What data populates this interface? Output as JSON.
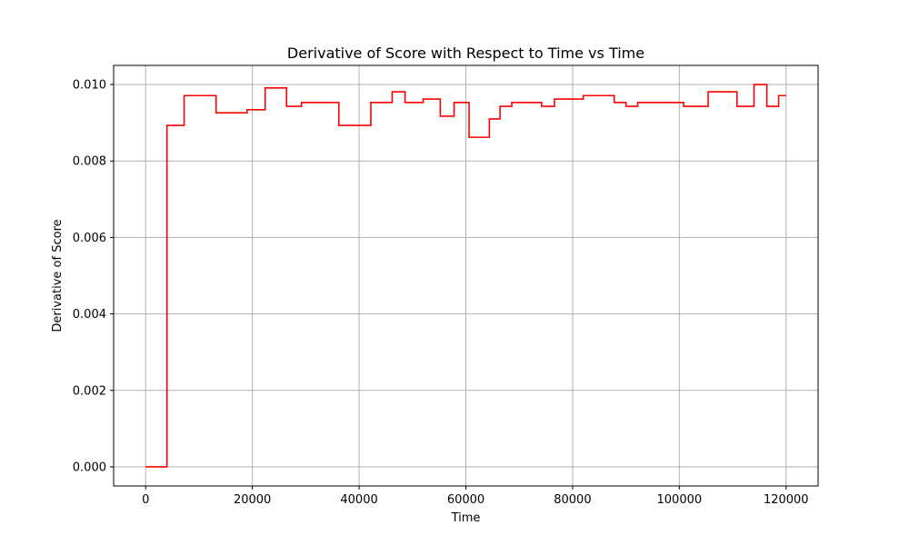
{
  "chart_data": {
    "type": "line",
    "title": "Derivative of Score with Respect to Time vs Time",
    "xlabel": "Time",
    "ylabel": "Derivative of Score",
    "xlim": [
      -6000,
      126000
    ],
    "ylim": [
      -0.0005,
      0.0105
    ],
    "x_ticks": [
      0,
      20000,
      40000,
      60000,
      80000,
      100000,
      120000
    ],
    "x_tick_labels": [
      "0",
      "20000",
      "40000",
      "60000",
      "80000",
      "100000",
      "120000"
    ],
    "y_ticks": [
      0.0,
      0.002,
      0.004,
      0.006,
      0.008,
      0.01
    ],
    "y_tick_labels": [
      "0.000",
      "0.002",
      "0.004",
      "0.006",
      "0.008",
      "0.010"
    ],
    "grid": true,
    "line_style": "step",
    "series": [
      {
        "color": "#ff0000",
        "x": [
          0,
          4000,
          4000,
          7200,
          7200,
          13200,
          13200,
          19000,
          19000,
          22400,
          22400,
          26400,
          26400,
          29200,
          29200,
          36200,
          36200,
          42200,
          42200,
          46200,
          46200,
          48600,
          48600,
          52000,
          52000,
          55200,
          55200,
          57800,
          57800,
          60600,
          60600,
          64400,
          64400,
          66400,
          66400,
          68600,
          68600,
          74200,
          74200,
          76600,
          76600,
          82000,
          82000,
          87800,
          87800,
          90000,
          90000,
          92200,
          92200,
          100800,
          100800,
          105400,
          105400,
          110800,
          110800,
          114000,
          114000,
          116400,
          116400,
          118600,
          118600,
          120000
        ],
        "y": [
          0.0,
          0.0,
          0.00893,
          0.00893,
          0.00971,
          0.00971,
          0.00926,
          0.00926,
          0.00934,
          0.00934,
          0.00991,
          0.00991,
          0.00943,
          0.00943,
          0.00953,
          0.00953,
          0.00893,
          0.00893,
          0.00953,
          0.00953,
          0.00981,
          0.00981,
          0.00953,
          0.00953,
          0.00962,
          0.00962,
          0.00917,
          0.00917,
          0.00953,
          0.00953,
          0.00862,
          0.00862,
          0.0091,
          0.0091,
          0.00943,
          0.00943,
          0.00953,
          0.00953,
          0.00943,
          0.00943,
          0.00962,
          0.00962,
          0.00971,
          0.00971,
          0.00953,
          0.00953,
          0.00943,
          0.00943,
          0.00953,
          0.00953,
          0.00943,
          0.00943,
          0.00981,
          0.00981,
          0.00943,
          0.00943,
          0.01,
          0.01,
          0.00943,
          0.00943,
          0.00971,
          0.00971
        ]
      }
    ]
  }
}
